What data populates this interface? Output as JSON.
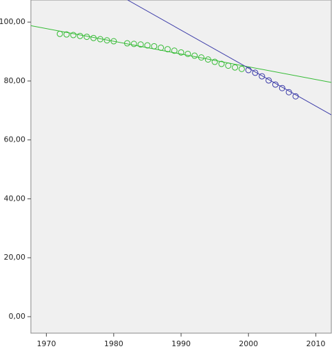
{
  "chart_data": {
    "type": "scatter",
    "xlim": [
      1967.7,
      2012.3
    ],
    "ylim": [
      -5.6,
      107.5
    ],
    "xticks": [
      1970,
      1980,
      1990,
      2000,
      2010
    ],
    "yticks": [
      {
        "value": 0,
        "label": "0,00"
      },
      {
        "value": 20,
        "label": "20,00"
      },
      {
        "value": 40,
        "label": "40,00"
      },
      {
        "value": 60,
        "label": "60,00"
      },
      {
        "value": 80,
        "label": "80,00"
      },
      {
        "value": 100,
        "label": "100,00"
      }
    ],
    "series": [
      {
        "color": "#33bb33",
        "x": [
          1972,
          1973,
          1974,
          1975,
          1976,
          1977,
          1978,
          1979,
          1980,
          1982,
          1983,
          1984,
          1985,
          1986,
          1987,
          1988,
          1989,
          1990,
          1991,
          1992,
          1993,
          1994,
          1995,
          1996,
          1997,
          1998,
          1999
        ],
        "values": [
          96.0,
          95.8,
          95.6,
          95.3,
          95.0,
          94.6,
          94.2,
          93.8,
          93.5,
          92.8,
          92.6,
          92.4,
          92.1,
          91.8,
          91.3,
          90.8,
          90.3,
          89.7,
          89.2,
          88.6,
          88.0,
          87.3,
          86.5,
          85.8,
          85.2,
          84.6,
          84.1
        ]
      },
      {
        "color": "#3a3aa8",
        "x": [
          2000,
          2001,
          2002,
          2003,
          2004,
          2005,
          2006,
          2007
        ],
        "values": [
          83.7,
          82.8,
          81.6,
          80.2,
          78.8,
          77.6,
          76.2,
          74.8
        ]
      }
    ],
    "fit_lines": [
      {
        "color": "#33bb33",
        "x": [
          1967.7,
          2012.3
        ],
        "values": [
          98.8,
          79.5
        ]
      },
      {
        "color": "#3a3aa8",
        "x": [
          1982.06,
          2012.3
        ],
        "values": [
          107.5,
          68.5
        ]
      }
    ]
  }
}
